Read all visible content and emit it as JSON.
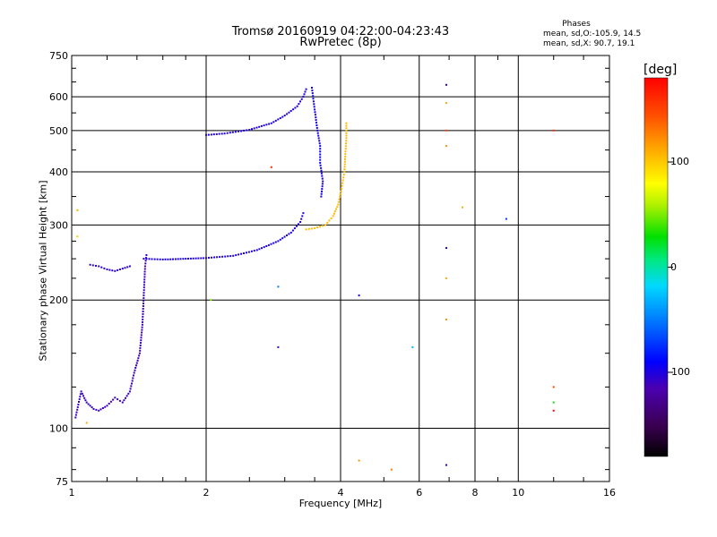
{
  "title": "Tromsø 20160919 04:22:00-04:23:43",
  "subtitle": "RwPretec (8p)",
  "phase_box": {
    "title": "Phases",
    "o_line": "mean, sd,O:-105.9, 14.5",
    "x_line": "mean, sd,X: 90.7, 19.1"
  },
  "colorbar": {
    "unit": "[deg]",
    "tick_labels": [
      "100",
      "0",
      "-100"
    ],
    "range": [
      -180,
      180
    ]
  },
  "chart_data": {
    "type": "scatter",
    "xlabel": "Frequency [MHz]",
    "ylabel": "Stationary phase Virtual Height [km]",
    "x_scale": "log",
    "y_scale": "log",
    "xlim": [
      1,
      16
    ],
    "ylim": [
      75,
      750
    ],
    "x_ticks": [
      "1",
      "2",
      "4",
      "6",
      "8",
      "10",
      "16"
    ],
    "y_ticks": [
      "75",
      "100",
      "200",
      "300",
      "400",
      "500",
      "600",
      "750"
    ],
    "grid": true,
    "traces": [
      {
        "phase": -110,
        "points": [
          [
            1.02,
            106
          ],
          [
            1.05,
            122
          ],
          [
            1.08,
            115
          ],
          [
            1.12,
            111
          ],
          [
            1.15,
            110
          ],
          [
            1.2,
            113
          ],
          [
            1.25,
            118
          ],
          [
            1.3,
            115
          ],
          [
            1.35,
            122
          ],
          [
            1.38,
            135
          ],
          [
            1.42,
            150
          ],
          [
            1.44,
            175
          ],
          [
            1.45,
            205
          ],
          [
            1.46,
            240
          ],
          [
            1.47,
            255
          ]
        ]
      },
      {
        "phase": -105,
        "points": [
          [
            1.1,
            242
          ],
          [
            1.15,
            240
          ],
          [
            1.2,
            236
          ],
          [
            1.25,
            234
          ],
          [
            1.3,
            237
          ],
          [
            1.35,
            240
          ]
        ]
      },
      {
        "phase": -100,
        "points": [
          [
            1.45,
            250
          ],
          [
            1.6,
            249
          ],
          [
            1.8,
            250
          ],
          [
            2.0,
            251
          ],
          [
            2.3,
            254
          ],
          [
            2.6,
            262
          ],
          [
            2.9,
            275
          ],
          [
            3.1,
            288
          ],
          [
            3.25,
            305
          ],
          [
            3.3,
            320
          ]
        ]
      },
      {
        "phase": -100,
        "points": [
          [
            2.0,
            488
          ],
          [
            2.2,
            492
          ],
          [
            2.5,
            502
          ],
          [
            2.8,
            520
          ],
          [
            3.0,
            542
          ],
          [
            3.2,
            570
          ],
          [
            3.3,
            600
          ],
          [
            3.35,
            625
          ]
        ]
      },
      {
        "phase": 105,
        "points": [
          [
            3.35,
            293
          ],
          [
            3.5,
            295
          ],
          [
            3.7,
            300
          ],
          [
            3.85,
            315
          ],
          [
            3.95,
            335
          ],
          [
            4.02,
            365
          ],
          [
            4.08,
            400
          ],
          [
            4.1,
            440
          ],
          [
            4.12,
            480
          ],
          [
            4.12,
            520
          ]
        ]
      },
      {
        "phase": -95,
        "points": [
          [
            3.45,
            630
          ],
          [
            3.5,
            560
          ],
          [
            3.55,
            500
          ],
          [
            3.6,
            460
          ],
          [
            3.6,
            420
          ],
          [
            3.65,
            380
          ],
          [
            3.62,
            350
          ]
        ]
      }
    ],
    "sparse_points": [
      {
        "x": 6.9,
        "y": 640,
        "phase": -100
      },
      {
        "x": 6.9,
        "y": 580,
        "phase": 110
      },
      {
        "x": 6.9,
        "y": 500,
        "phase": 150
      },
      {
        "x": 6.9,
        "y": 460,
        "phase": 120
      },
      {
        "x": 6.9,
        "y": 265,
        "phase": -95
      },
      {
        "x": 6.9,
        "y": 225,
        "phase": 110
      },
      {
        "x": 6.9,
        "y": 180,
        "phase": 120
      },
      {
        "x": 6.9,
        "y": 82,
        "phase": -100
      },
      {
        "x": 9.4,
        "y": 310,
        "phase": -70
      },
      {
        "x": 12.0,
        "y": 500,
        "phase": 160
      },
      {
        "x": 12.0,
        "y": 125,
        "phase": 150
      },
      {
        "x": 12.0,
        "y": 115,
        "phase": 30
      },
      {
        "x": 12.0,
        "y": 110,
        "phase": 180
      },
      {
        "x": 4.4,
        "y": 84,
        "phase": 120
      },
      {
        "x": 4.4,
        "y": 205,
        "phase": -100
      },
      {
        "x": 5.2,
        "y": 80,
        "phase": 130
      },
      {
        "x": 5.8,
        "y": 155,
        "phase": -30
      },
      {
        "x": 2.9,
        "y": 155,
        "phase": -110
      },
      {
        "x": 2.9,
        "y": 215,
        "phase": -50
      },
      {
        "x": 2.05,
        "y": 200,
        "phase": 50
      },
      {
        "x": 2.8,
        "y": 410,
        "phase": 160
      },
      {
        "x": 7.5,
        "y": 330,
        "phase": 110
      },
      {
        "x": 1.03,
        "y": 325,
        "phase": 110
      },
      {
        "x": 1.03,
        "y": 282,
        "phase": 100
      },
      {
        "x": 1.08,
        "y": 103,
        "phase": 110
      }
    ]
  }
}
